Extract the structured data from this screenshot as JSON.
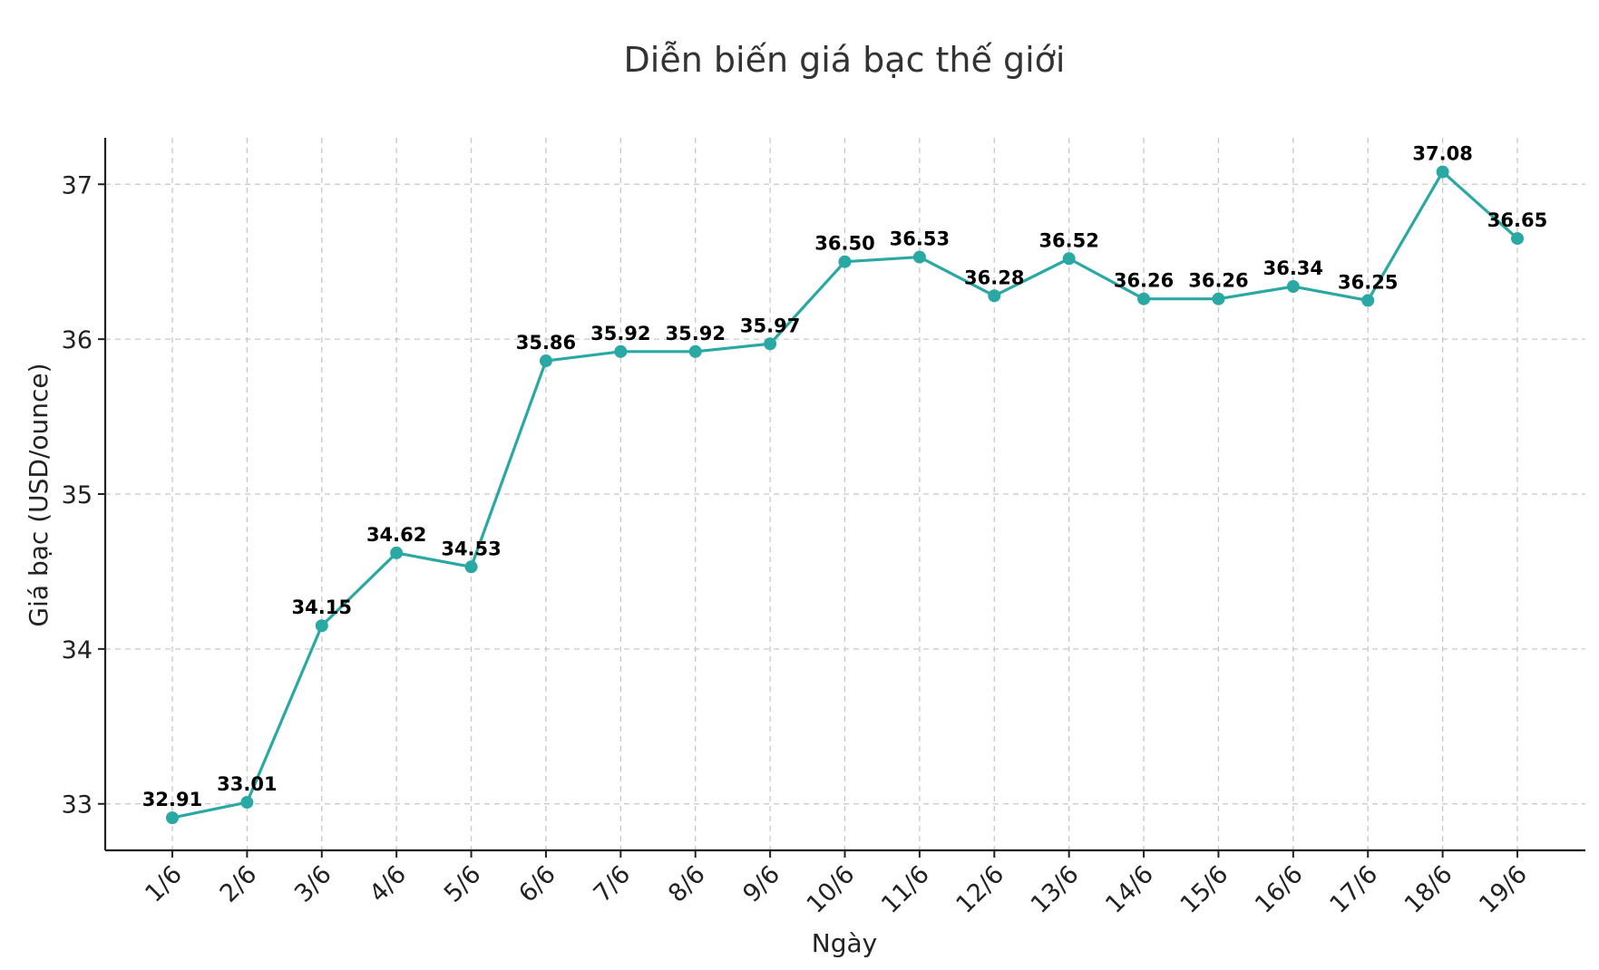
{
  "chart_data": {
    "type": "line",
    "title": "Diễn biến giá bạc thế giới",
    "xlabel": "Ngày",
    "ylabel": "Giá bạc (USD/ounce)",
    "categories": [
      "1/6",
      "2/6",
      "3/6",
      "4/6",
      "5/6",
      "6/6",
      "7/6",
      "8/6",
      "9/6",
      "10/6",
      "11/6",
      "12/6",
      "13/6",
      "14/6",
      "15/6",
      "16/6",
      "17/6",
      "18/6",
      "19/6"
    ],
    "values": [
      32.91,
      33.01,
      34.15,
      34.62,
      34.53,
      35.86,
      35.92,
      35.92,
      35.97,
      36.5,
      36.53,
      36.28,
      36.52,
      36.26,
      36.26,
      36.34,
      36.25,
      37.08,
      36.65
    ],
    "data_labels": [
      "32.91",
      "33.01",
      "34.15",
      "34.62",
      "34.53",
      "35.86",
      "35.92",
      "35.92",
      "35.97",
      "36.50",
      "36.53",
      "36.28",
      "36.52",
      "36.26",
      "36.26",
      "36.34",
      "36.25",
      "37.08",
      "36.65"
    ],
    "yticks": [
      33,
      34,
      35,
      36,
      37
    ],
    "ylim": [
      32.7,
      37.3
    ],
    "grid": true,
    "line_color": "#2aa8a3",
    "marker_color": "#2aa8a3"
  }
}
